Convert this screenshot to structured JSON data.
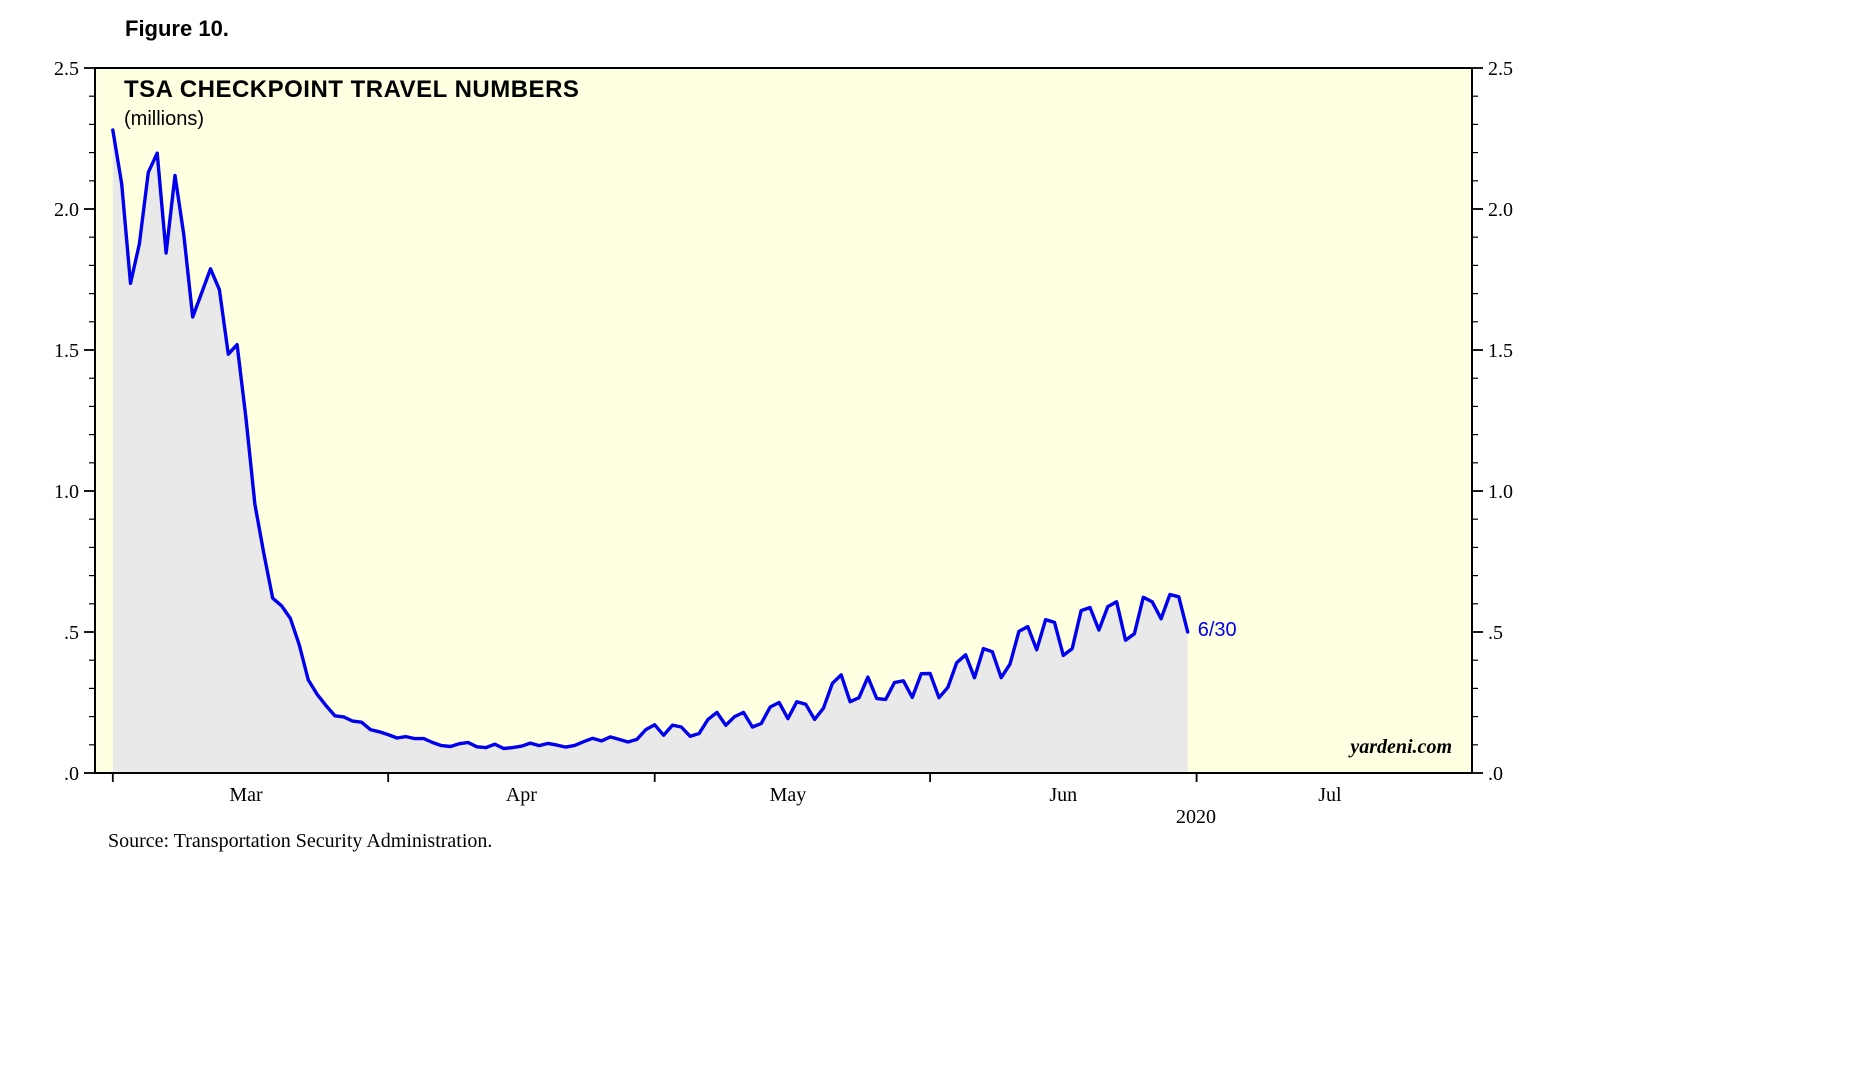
{
  "figure_label": "Figure 10.",
  "source_note": "Source: Transportation Security Administration.",
  "chart_data": {
    "type": "area",
    "title": "TSA CHECKPOINT TRAVEL NUMBERS",
    "subtitle": "(millions)",
    "year_label": "2020",
    "watermark": "yardeni.com",
    "end_label": "6/30",
    "grid": false,
    "legend": false,
    "ylim": [
      0.0,
      2.5
    ],
    "xlim": [
      "2020-02-28",
      "2020-08-01"
    ],
    "y_minor_step": 0.1,
    "y_major_ticks": [
      {
        "value": 0.0,
        "label": ".0"
      },
      {
        "value": 0.5,
        "label": ".5"
      },
      {
        "value": 1.0,
        "label": "1.0"
      },
      {
        "value": 1.5,
        "label": "1.5"
      },
      {
        "value": 2.0,
        "label": "2.0"
      },
      {
        "value": 2.5,
        "label": "2.5"
      }
    ],
    "x_month_ticks": [
      "2020-03-01",
      "2020-04-01",
      "2020-05-01",
      "2020-06-01",
      "2020-07-01"
    ],
    "x_month_labels": [
      {
        "label": "Mar",
        "center": "2020-03-16"
      },
      {
        "label": "Apr",
        "center": "2020-04-16"
      },
      {
        "label": "May",
        "center": "2020-05-16"
      },
      {
        "label": "Jun",
        "center": "2020-06-16"
      },
      {
        "label": "Jul",
        "center": "2020-07-16"
      }
    ],
    "series": [
      {
        "name": "TSA checkpoint travelers",
        "start": "2020-03-01",
        "frequency": "daily",
        "values": [
          2.28,
          2.089,
          1.736,
          1.877,
          2.13,
          2.198,
          1.844,
          2.119,
          1.909,
          1.617,
          1.702,
          1.788,
          1.714,
          1.485,
          1.519,
          1.257,
          0.953,
          0.779,
          0.62,
          0.593,
          0.548,
          0.454,
          0.331,
          0.279,
          0.239,
          0.203,
          0.199,
          0.184,
          0.18,
          0.154,
          0.146,
          0.136,
          0.124,
          0.129,
          0.122,
          0.122,
          0.108,
          0.097,
          0.094,
          0.104,
          0.108,
          0.093,
          0.09,
          0.102,
          0.087,
          0.09,
          0.095,
          0.106,
          0.097,
          0.105,
          0.099,
          0.092,
          0.098,
          0.111,
          0.123,
          0.114,
          0.128,
          0.119,
          0.11,
          0.119,
          0.154,
          0.171,
          0.134,
          0.17,
          0.163,
          0.13,
          0.14,
          0.19,
          0.215,
          0.169,
          0.2,
          0.215,
          0.163,
          0.176,
          0.234,
          0.25,
          0.193,
          0.253,
          0.244,
          0.19,
          0.23,
          0.318,
          0.348,
          0.253,
          0.267,
          0.34,
          0.264,
          0.261,
          0.321,
          0.327,
          0.268,
          0.352,
          0.353,
          0.267,
          0.304,
          0.391,
          0.419,
          0.338,
          0.441,
          0.43,
          0.338,
          0.386,
          0.502,
          0.519,
          0.437,
          0.544,
          0.534,
          0.417,
          0.441,
          0.576,
          0.587,
          0.507,
          0.59,
          0.607,
          0.471,
          0.494,
          0.623,
          0.607,
          0.547,
          0.633,
          0.625,
          0.5
        ]
      }
    ],
    "colors": {
      "line": "#0000EE",
      "annotation": "#0000EE",
      "area_fill": "#E9E9E9",
      "plot_background": "#FFFFE1",
      "frame": "#000000",
      "text": "#000000"
    }
  }
}
